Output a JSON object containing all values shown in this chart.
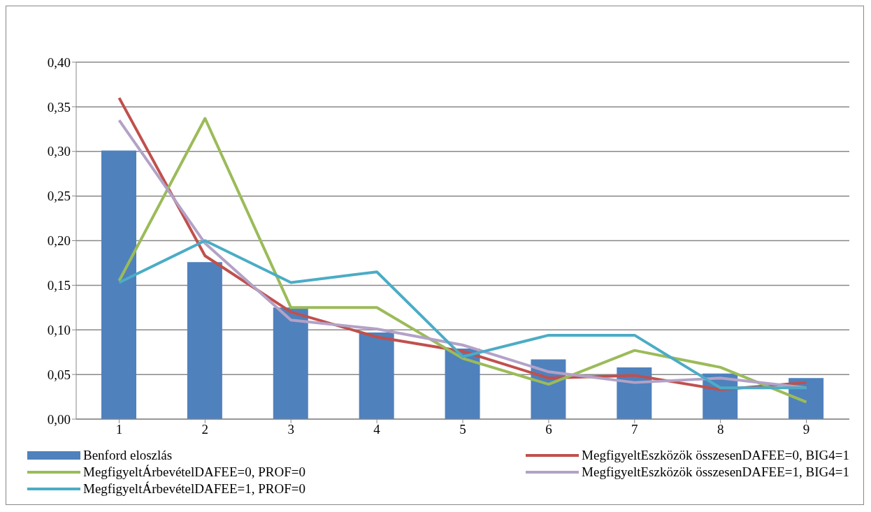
{
  "chart_data": {
    "type": "line",
    "categories": [
      "1",
      "2",
      "3",
      "4",
      "5",
      "6",
      "7",
      "8",
      "9"
    ],
    "series": [
      {
        "name": "Benford eloszlás",
        "type": "bar",
        "color": "#4f81bd",
        "values": [
          0.301,
          0.176,
          0.125,
          0.097,
          0.079,
          0.067,
          0.058,
          0.051,
          0.046
        ]
      },
      {
        "name": "MegfigyeltEszközök összesenDAFEE=0, BIG4=1",
        "color": "#c0504d",
        "values": [
          0.36,
          0.183,
          0.12,
          0.092,
          0.076,
          0.046,
          0.049,
          0.033,
          0.041
        ]
      },
      {
        "name": "MegfigyeltÁrbevételDAFEE=0, PROF=0",
        "color": "#9bbb59",
        "values": [
          0.155,
          0.337,
          0.125,
          0.125,
          0.068,
          0.039,
          0.077,
          0.058,
          0.019
        ]
      },
      {
        "name": "MegfigyeltEszközök összesenDAFEE=1, BIG4=1",
        "color": "#b3a2c7",
        "values": [
          0.335,
          0.197,
          0.111,
          0.101,
          0.083,
          0.053,
          0.041,
          0.046,
          0.035
        ]
      },
      {
        "name": "MegfigyeltÁrbevételDAFEE=1, PROF=0",
        "color": "#4bacc6",
        "values": [
          0.153,
          0.2,
          0.153,
          0.165,
          0.07,
          0.094,
          0.094,
          0.035,
          0.035
        ]
      }
    ],
    "ylim": [
      0,
      0.4
    ],
    "yticks": [
      {
        "value": 0,
        "label": "0,00"
      },
      {
        "value": 0.05,
        "label": "0,05"
      },
      {
        "value": 0.1,
        "label": "0,10"
      },
      {
        "value": 0.15,
        "label": "0,15"
      },
      {
        "value": 0.2,
        "label": "0,20"
      },
      {
        "value": 0.25,
        "label": "0,25"
      },
      {
        "value": 0.3,
        "label": "0,30"
      },
      {
        "value": 0.35,
        "label": "0,35"
      },
      {
        "value": 0.4,
        "label": "0,40"
      }
    ],
    "grid": "y",
    "legend": "bottom",
    "marker": "none",
    "line_style": "solid"
  }
}
